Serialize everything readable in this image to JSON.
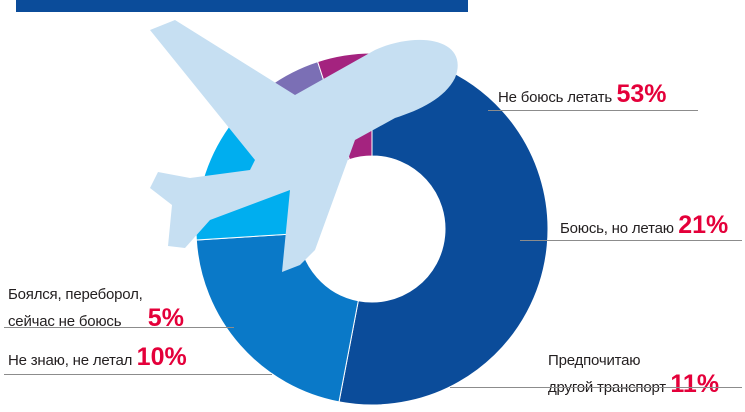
{
  "chart_data": {
    "type": "pie",
    "categories": [
      "Не боюсь летать",
      "Боюсь, но летаю",
      "Предпочитаю другой транспорт",
      "Не знаю, не летал",
      "Боялся, переборол, сейчас не боюсь"
    ],
    "values": [
      53,
      21,
      11,
      10,
      5
    ],
    "unit": "%",
    "colors": [
      "#0b4c9a",
      "#0a79c8",
      "#00aeef",
      "#7b6fb5",
      "#a4237f"
    ],
    "labels": [
      {
        "lines": [
          "Не боюсь летать"
        ],
        "pct": "53%"
      },
      {
        "lines": [
          "Боюсь, но летаю"
        ],
        "pct": "21%"
      },
      {
        "lines": [
          "Предпочитаю",
          "другой транспорт"
        ],
        "pct": "11%"
      },
      {
        "lines": [
          "Не знаю, не летал"
        ],
        "pct": "10%"
      },
      {
        "lines": [
          "Боялся, переборол,",
          "сейчас не боюсь"
        ],
        "pct": "5%"
      }
    ]
  },
  "colors": {
    "header_bar": "#0b4c9a",
    "plane": "#c6dff2",
    "percent": "#e4003a"
  },
  "icons": {
    "plane": "airplane-icon"
  }
}
